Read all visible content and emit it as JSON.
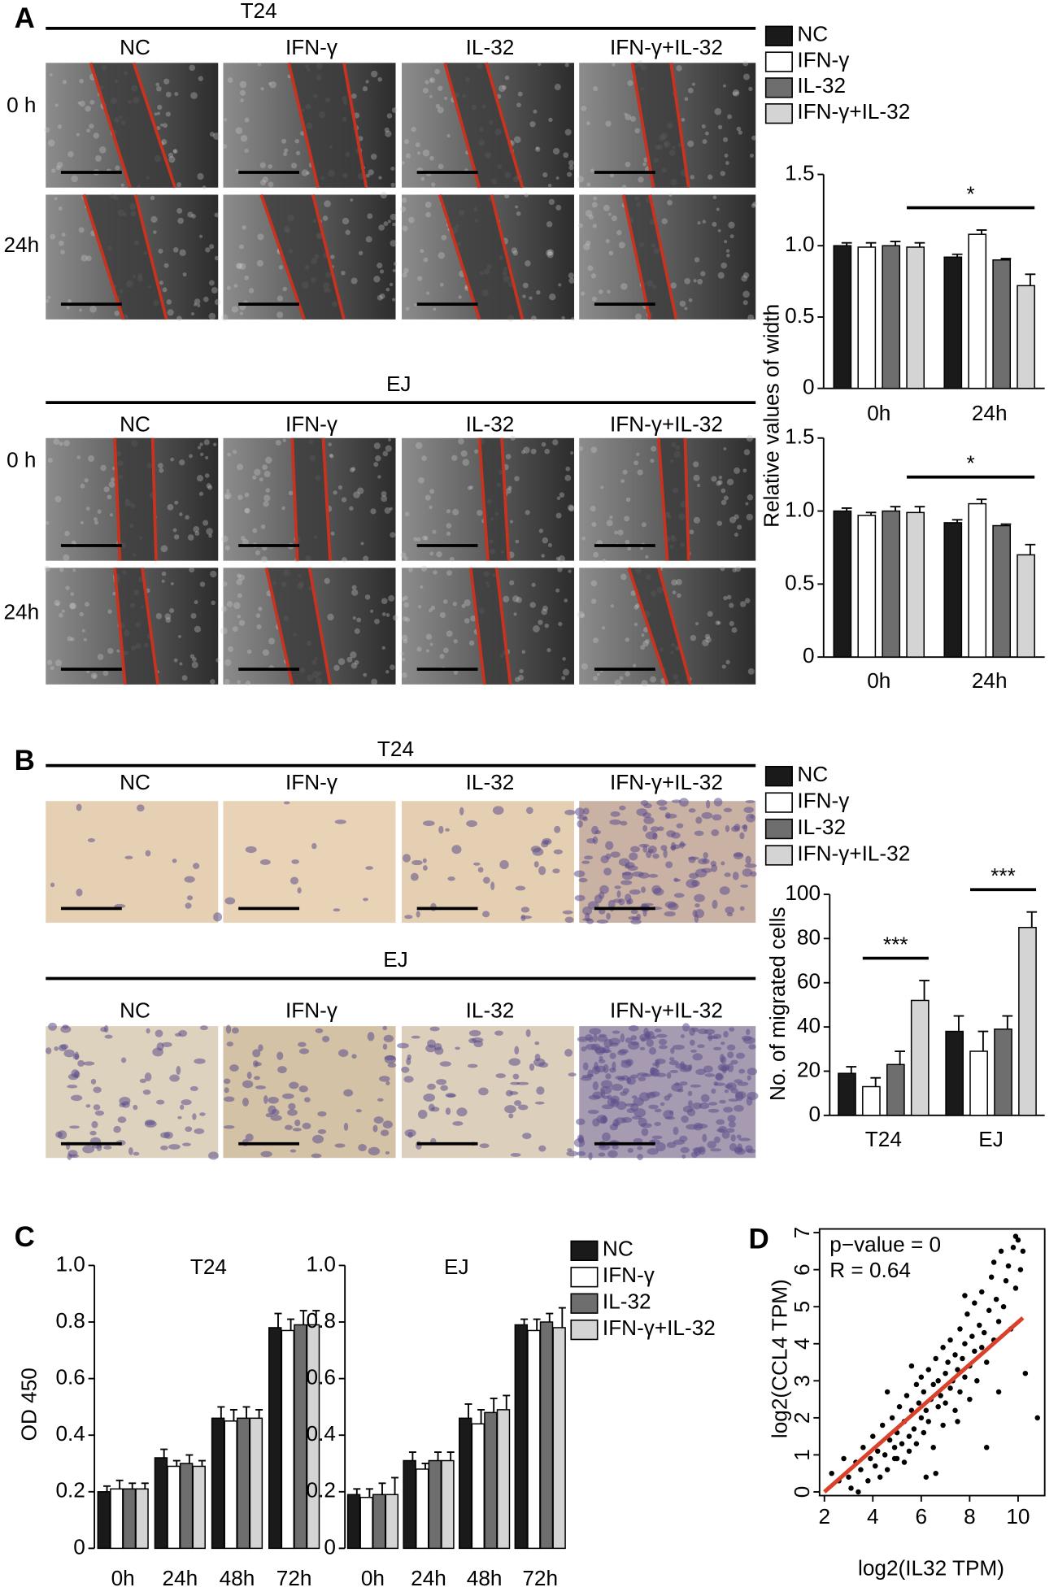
{
  "figure": {
    "panel_labels": [
      "A",
      "B",
      "C",
      "D"
    ],
    "panel_a": {
      "cell_lines": [
        {
          "name": "T24",
          "conditions": [
            "NC",
            "IFN-γ",
            "IL-32",
            "IFN-γ+IL-32"
          ],
          "timepoints": [
            "0 h",
            "24h"
          ]
        },
        {
          "name": "EJ",
          "conditions": [
            "NC",
            "IFN-γ",
            "IL-32",
            "IFN-γ+IL-32"
          ],
          "timepoints": [
            "0 h",
            "24h"
          ]
        }
      ]
    },
    "panel_b": {
      "cell_lines": [
        {
          "name": "T24",
          "conditions": [
            "NC",
            "IFN-γ",
            "IL-32",
            "IFN-γ+IL-32"
          ]
        },
        {
          "name": "EJ",
          "conditions": [
            "NC",
            "IFN-γ",
            "IL-32",
            "IFN-γ+IL-32"
          ]
        }
      ]
    }
  },
  "chart_data": [
    {
      "type": "bar",
      "ylabel": "Relative values of width",
      "categories": [
        "0h",
        "24h"
      ],
      "ylim": [
        0,
        1.5
      ],
      "yticks": [
        0,
        0.5,
        {
          "value": 1,
          "label": "1.0"
        },
        1.5
      ],
      "series": [
        {
          "name": "NC",
          "color": "#1a1a1a",
          "values": [
            1.0,
            0.92
          ],
          "errors": [
            0.02,
            0.02
          ]
        },
        {
          "name": "IFN-γ",
          "color": "#ffffff",
          "values": [
            0.99,
            1.08
          ],
          "errors": [
            0.03,
            0.03
          ]
        },
        {
          "name": "IL-32",
          "color": "#6e6e6e",
          "values": [
            1.0,
            0.9
          ],
          "errors": [
            0.03,
            0.01
          ]
        },
        {
          "name": "IFN-γ+IL-32",
          "color": "#d4d4d4",
          "values": [
            0.99,
            0.72
          ],
          "errors": [
            0.03,
            0.08
          ]
        }
      ],
      "significance": [
        {
          "label": "*",
          "from": {
            "category": 0,
            "series": 3
          },
          "to": {
            "category": 1,
            "series": 3
          }
        }
      ]
    },
    {
      "type": "bar",
      "categories": [
        "0h",
        "24h"
      ],
      "ylim": [
        0,
        1.5
      ],
      "yticks": [
        0,
        0.5,
        {
          "value": 1,
          "label": "1.0"
        },
        1.5
      ],
      "series": [
        {
          "color": "#1a1a1a",
          "values": [
            1.0,
            0.92
          ],
          "errors": [
            0.02,
            0.02
          ]
        },
        {
          "color": "#ffffff",
          "values": [
            0.97,
            1.05
          ],
          "errors": [
            0.02,
            0.03
          ]
        },
        {
          "color": "#6e6e6e",
          "values": [
            1.0,
            0.9
          ],
          "errors": [
            0.03,
            0.01
          ]
        },
        {
          "color": "#d4d4d4",
          "values": [
            0.99,
            0.7
          ],
          "errors": [
            0.04,
            0.07
          ]
        }
      ],
      "significance": [
        {
          "label": "*",
          "from": {
            "category": 0,
            "series": 3
          },
          "to": {
            "category": 1,
            "series": 3
          }
        }
      ]
    },
    {
      "type": "bar",
      "ylabel": "No. of migrated cells",
      "categories": [
        "T24",
        "EJ"
      ],
      "ylim": [
        0,
        100
      ],
      "yticks": [
        0,
        20,
        40,
        60,
        80,
        100
      ],
      "series": [
        {
          "name": "NC",
          "color": "#1a1a1a",
          "values": [
            19,
            38
          ],
          "errors": [
            3,
            7
          ]
        },
        {
          "name": "IFN-γ",
          "color": "#ffffff",
          "values": [
            13,
            29
          ],
          "errors": [
            4,
            9
          ]
        },
        {
          "name": "IL-32",
          "color": "#6e6e6e",
          "values": [
            23,
            39
          ],
          "errors": [
            6,
            6
          ]
        },
        {
          "name": "IFN-γ+IL-32",
          "color": "#d4d4d4",
          "values": [
            52,
            85
          ],
          "errors": [
            9,
            7
          ]
        }
      ],
      "significance": [
        {
          "label": "***",
          "from": {
            "category": 0,
            "series": 1
          },
          "to": {
            "category": 0,
            "series": 3
          }
        },
        {
          "label": "***",
          "from": {
            "category": 1,
            "series": 1
          },
          "to": {
            "category": 1,
            "series": 3
          }
        }
      ]
    },
    {
      "type": "bar",
      "title": "T24",
      "ylabel": "OD 450",
      "categories": [
        "0h",
        "24h",
        "48h",
        "72h"
      ],
      "ylim": [
        0,
        1
      ],
      "yticks": [
        0,
        0.2,
        0.4,
        0.6,
        0.8,
        {
          "value": 1,
          "label": "1.0"
        }
      ],
      "series": [
        {
          "color": "#1a1a1a",
          "values": [
            0.2,
            0.32,
            0.46,
            0.78
          ],
          "errors": [
            0.02,
            0.03,
            0.04,
            0.05
          ]
        },
        {
          "color": "#ffffff",
          "values": [
            0.21,
            0.29,
            0.45,
            0.77
          ],
          "errors": [
            0.03,
            0.02,
            0.04,
            0.04
          ]
        },
        {
          "color": "#6e6e6e",
          "values": [
            0.21,
            0.3,
            0.46,
            0.79
          ],
          "errors": [
            0.02,
            0.03,
            0.04,
            0.05
          ]
        },
        {
          "color": "#d4d4d4",
          "values": [
            0.21,
            0.29,
            0.46,
            0.79
          ],
          "errors": [
            0.02,
            0.02,
            0.03,
            0.05
          ]
        }
      ]
    },
    {
      "type": "bar",
      "title": "EJ",
      "categories": [
        "0h",
        "24h",
        "48h",
        "72h"
      ],
      "ylim": [
        0,
        1
      ],
      "yticks": [
        0,
        0.2,
        0.4,
        0.6,
        0.8,
        {
          "value": 1,
          "label": "1.0"
        }
      ],
      "series": [
        {
          "name": "NC",
          "color": "#1a1a1a",
          "values": [
            0.19,
            0.31,
            0.46,
            0.79
          ],
          "errors": [
            0.02,
            0.03,
            0.05,
            0.02
          ]
        },
        {
          "name": "IFN-γ",
          "color": "#ffffff",
          "values": [
            0.18,
            0.28,
            0.44,
            0.77
          ],
          "errors": [
            0.03,
            0.02,
            0.05,
            0.04
          ]
        },
        {
          "name": "IL-32",
          "color": "#6e6e6e",
          "values": [
            0.19,
            0.31,
            0.48,
            0.8
          ],
          "errors": [
            0.04,
            0.03,
            0.05,
            0.03
          ]
        },
        {
          "name": "IFN-γ+IL-32",
          "color": "#d4d4d4",
          "values": [
            0.19,
            0.31,
            0.49,
            0.78
          ],
          "errors": [
            0.06,
            0.03,
            0.05,
            0.07
          ]
        }
      ]
    },
    {
      "type": "scatter",
      "xlabel": "log2(IL32 TPM)",
      "ylabel": "log2(CCL4 TPM)",
      "annotations": [
        "p−value = 0",
        "R = 0.64"
      ],
      "color": "#000000",
      "xlim": [
        1.8,
        11.1
      ],
      "ylim": [
        -0.1,
        7.1
      ],
      "xticks": [
        2,
        4,
        6,
        8,
        10
      ],
      "yticks": [
        0,
        1,
        2,
        3,
        4,
        5,
        6,
        7
      ],
      "x": [
        2.3,
        2.6,
        2.8,
        3.0,
        3.1,
        3.3,
        3.5,
        3.6,
        3.8,
        3.9,
        4.0,
        4.1,
        4.2,
        4.3,
        4.4,
        4.5,
        4.6,
        4.7,
        4.8,
        4.9,
        5.0,
        5.0,
        5.1,
        5.2,
        5.3,
        5.3,
        5.4,
        5.5,
        5.5,
        5.6,
        5.7,
        5.8,
        5.8,
        5.9,
        6.0,
        6.0,
        6.1,
        6.1,
        6.2,
        6.3,
        6.3,
        6.4,
        6.5,
        6.5,
        6.6,
        6.7,
        6.7,
        6.8,
        6.9,
        6.9,
        7.0,
        7.0,
        7.1,
        7.2,
        7.2,
        7.3,
        7.4,
        7.4,
        7.5,
        7.6,
        7.6,
        7.7,
        7.8,
        7.8,
        7.9,
        8.0,
        8.0,
        8.1,
        8.2,
        8.2,
        8.3,
        8.4,
        8.5,
        8.5,
        8.6,
        8.7,
        8.8,
        8.9,
        9.0,
        9.0,
        9.1,
        9.2,
        9.3,
        9.4,
        9.5,
        9.6,
        9.7,
        9.8,
        9.9,
        10.0,
        10.1,
        10.2,
        10.3,
        10.8,
        3.4,
        4.6,
        5.6,
        6.6,
        7.5,
        8.7,
        9.2,
        9.9,
        4.9,
        6.2,
        7.8
      ],
      "y": [
        0.5,
        0.3,
        0.9,
        0.4,
        0.1,
        0.8,
        0.6,
        1.2,
        0.3,
        0.9,
        1.5,
        0.7,
        1.1,
        0.4,
        1.8,
        1.0,
        0.6,
        1.4,
        2.0,
        1.2,
        0.9,
        1.6,
        2.3,
        1.3,
        0.8,
        1.9,
        2.6,
        1.5,
        1.1,
        2.2,
        1.7,
        2.9,
        1.3,
        2.4,
        2.0,
        3.1,
        1.6,
        2.7,
        2.2,
        3.3,
        1.9,
        2.5,
        2.9,
        1.2,
        3.6,
        2.3,
        3.0,
        2.6,
        3.9,
        1.8,
        3.2,
        2.4,
        3.5,
        2.8,
        4.1,
        3.0,
        3.7,
        2.2,
        3.3,
        4.4,
        2.7,
        3.6,
        4.0,
        3.1,
        4.8,
        3.4,
        2.5,
        4.2,
        3.8,
        5.1,
        3.0,
        4.5,
        3.9,
        5.4,
        4.3,
        3.5,
        4.9,
        5.8,
        4.1,
        6.2,
        5.2,
        4.6,
        6.5,
        5.0,
        5.7,
        6.1,
        4.4,
        6.6,
        5.5,
        6.8,
        6.0,
        6.5,
        3.2,
        2.0,
        0,
        2.7,
        3.4,
        0.5,
        1.9,
        1.2,
        2.7,
        6.9,
        0.9,
        0.4,
        5.3
      ],
      "fit": {
        "color": "#d9412b",
        "x": [
          2,
          10.2
        ],
        "y": [
          0,
          4.7
        ]
      }
    }
  ]
}
